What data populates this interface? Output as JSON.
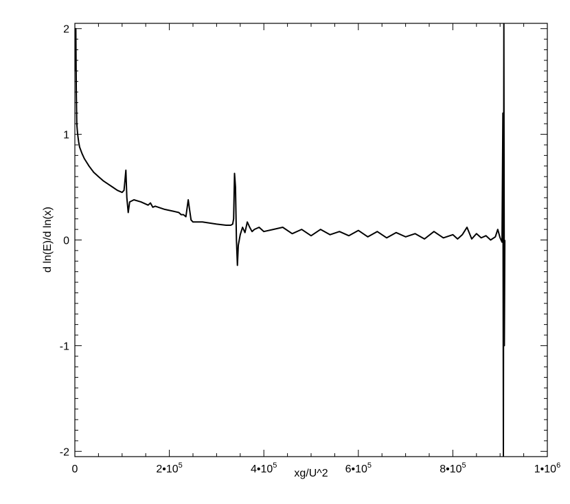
{
  "chart_data": {
    "type": "line",
    "title": "",
    "xlabel": "xg/U^2",
    "ylabel": "d ln(E)/d ln(x)",
    "xlim": [
      0,
      1000000
    ],
    "ylim": [
      -2.05,
      2.05
    ],
    "grid": false,
    "legend": "none",
    "line_color": "#000000",
    "x_ticks": [
      {
        "value": 0,
        "mantissa": "0",
        "exponent": ""
      },
      {
        "value": 200000,
        "mantissa": "2•10",
        "exponent": "5"
      },
      {
        "value": 400000,
        "mantissa": "4•10",
        "exponent": "5"
      },
      {
        "value": 600000,
        "mantissa": "6•10",
        "exponent": "5"
      },
      {
        "value": 800000,
        "mantissa": "8•10",
        "exponent": "5"
      },
      {
        "value": 1000000,
        "mantissa": "1•10",
        "exponent": "6"
      }
    ],
    "y_ticks": [
      {
        "value": -2,
        "label": "-2"
      },
      {
        "value": -1,
        "label": "-1"
      },
      {
        "value": 0,
        "label": "0"
      },
      {
        "value": 1,
        "label": "1"
      },
      {
        "value": 2,
        "label": "2"
      }
    ],
    "series": [
      {
        "x": [
          0,
          2000,
          3000,
          4000,
          5000,
          6000,
          8000,
          10000,
          15000,
          20000,
          30000,
          40000,
          50000,
          60000,
          70000,
          80000,
          90000,
          100000,
          104000,
          106000,
          108000,
          110000,
          113000,
          116000,
          125000,
          140000,
          155000,
          160000,
          165000,
          170000,
          190000,
          210000,
          220000,
          225000,
          230000,
          235000,
          240000,
          243000,
          246000,
          250000,
          270000,
          300000,
          320000,
          330000,
          334000,
          336000,
          338000,
          340000,
          342000,
          344000,
          346000,
          350000,
          355000,
          360000,
          365000,
          370000,
          375000,
          380000,
          390000,
          400000,
          420000,
          440000,
          460000,
          480000,
          500000,
          520000,
          540000,
          560000,
          580000,
          600000,
          620000,
          640000,
          660000,
          680000,
          700000,
          720000,
          740000,
          760000,
          780000,
          800000,
          810000,
          820000,
          830000,
          840000,
          850000,
          860000,
          870000,
          880000,
          890000,
          895000,
          900000,
          904000,
          906000,
          907000,
          908000,
          909000,
          910000
        ],
        "y": [
          1.6,
          2.0,
          1.4,
          1.1,
          1.05,
          1.0,
          0.93,
          0.88,
          0.82,
          0.77,
          0.7,
          0.64,
          0.6,
          0.56,
          0.53,
          0.5,
          0.47,
          0.45,
          0.47,
          0.56,
          0.66,
          0.4,
          0.26,
          0.36,
          0.38,
          0.36,
          0.33,
          0.35,
          0.31,
          0.32,
          0.29,
          0.27,
          0.26,
          0.24,
          0.24,
          0.22,
          0.38,
          0.28,
          0.19,
          0.17,
          0.17,
          0.15,
          0.14,
          0.14,
          0.15,
          0.2,
          0.63,
          0.5,
          0.0,
          -0.24,
          -0.05,
          0.05,
          0.12,
          0.07,
          0.17,
          0.12,
          0.08,
          0.1,
          0.12,
          0.08,
          0.1,
          0.12,
          0.06,
          0.1,
          0.04,
          0.1,
          0.05,
          0.08,
          0.04,
          0.09,
          0.03,
          0.08,
          0.02,
          0.07,
          0.03,
          0.06,
          0.01,
          0.08,
          0.02,
          0.05,
          0.01,
          0.05,
          0.12,
          0.01,
          0.06,
          0.02,
          0.04,
          0.0,
          0.03,
          0.1,
          0.02,
          -0.02,
          1.2,
          -2.05,
          2.05,
          -1.0,
          0.0
        ]
      }
    ]
  }
}
